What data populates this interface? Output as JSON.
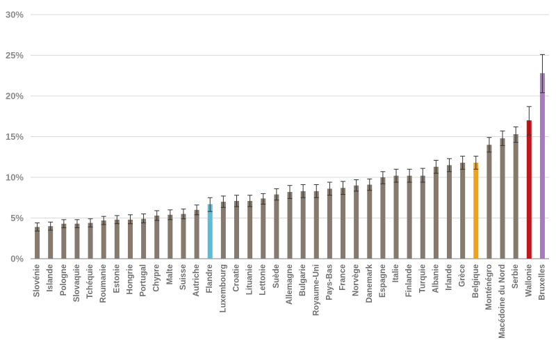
{
  "chart_data": {
    "type": "bar",
    "title": "",
    "xlabel": "",
    "ylabel": "",
    "ylim": [
      0,
      30
    ],
    "yticks": [
      "0%",
      "5%",
      "10%",
      "15%",
      "20%",
      "25%",
      "30%"
    ],
    "grid": true,
    "legend": "none",
    "default_color": "#857a6d",
    "error_color": "#333333",
    "categories": [
      "Slovénie",
      "Islande",
      "Pologne",
      "Slovaquie",
      "Tchéquie",
      "Roumanie",
      "Estonie",
      "Hongrie",
      "Portugal",
      "Chypre",
      "Malte",
      "Suisse",
      "Autriche",
      "Flandre",
      "Luxembourg",
      "Croatie",
      "Lituanie",
      "Lettonie",
      "Suède",
      "Allemagne",
      "Bulgarie",
      "Royaume-Uni",
      "Pays-Bas",
      "France",
      "Norvège",
      "Danemark",
      "Espagne",
      "Italie",
      "Finlande",
      "Turquie",
      "Albanie",
      "Irlande",
      "Grèce",
      "Belgique",
      "Monténégro",
      "Macédoine du Nord",
      "Serbie",
      "Wallonie",
      "Bruxelles"
    ],
    "values": [
      3.9,
      4.0,
      4.3,
      4.3,
      4.4,
      4.7,
      4.8,
      4.8,
      4.9,
      5.3,
      5.4,
      5.5,
      6.0,
      6.7,
      7.0,
      7.1,
      7.1,
      7.4,
      7.9,
      8.2,
      8.3,
      8.3,
      8.6,
      8.7,
      9.0,
      9.1,
      10.0,
      10.2,
      10.2,
      10.2,
      11.3,
      11.5,
      11.8,
      11.8,
      14.0,
      14.8,
      15.3,
      17.0,
      22.8
    ],
    "error_low": [
      3.4,
      3.5,
      3.8,
      3.8,
      3.9,
      4.2,
      4.3,
      4.3,
      4.4,
      4.7,
      4.8,
      4.9,
      5.4,
      5.8,
      6.3,
      6.4,
      6.4,
      6.7,
      7.2,
      7.4,
      7.5,
      7.5,
      7.8,
      7.9,
      8.3,
      8.4,
      9.2,
      9.4,
      9.4,
      9.4,
      10.5,
      10.7,
      11.0,
      11.0,
      13.1,
      13.9,
      14.3,
      15.2,
      20.4
    ],
    "error_high": [
      4.4,
      4.5,
      4.8,
      4.8,
      4.9,
      5.2,
      5.3,
      5.4,
      5.5,
      5.9,
      6.0,
      6.1,
      6.6,
      7.5,
      7.7,
      7.8,
      7.8,
      8.0,
      8.6,
      9.0,
      9.1,
      9.1,
      9.4,
      9.5,
      9.7,
      9.8,
      10.7,
      11.0,
      11.0,
      11.1,
      12.1,
      12.3,
      12.6,
      12.6,
      14.9,
      15.7,
      16.2,
      18.7,
      25.1
    ],
    "highlights": {
      "Flandre": "#5bbcd3",
      "Belgique": "#f0a11b",
      "Wallonie": "#c0171f",
      "Bruxelles": "#a77bbd"
    }
  }
}
